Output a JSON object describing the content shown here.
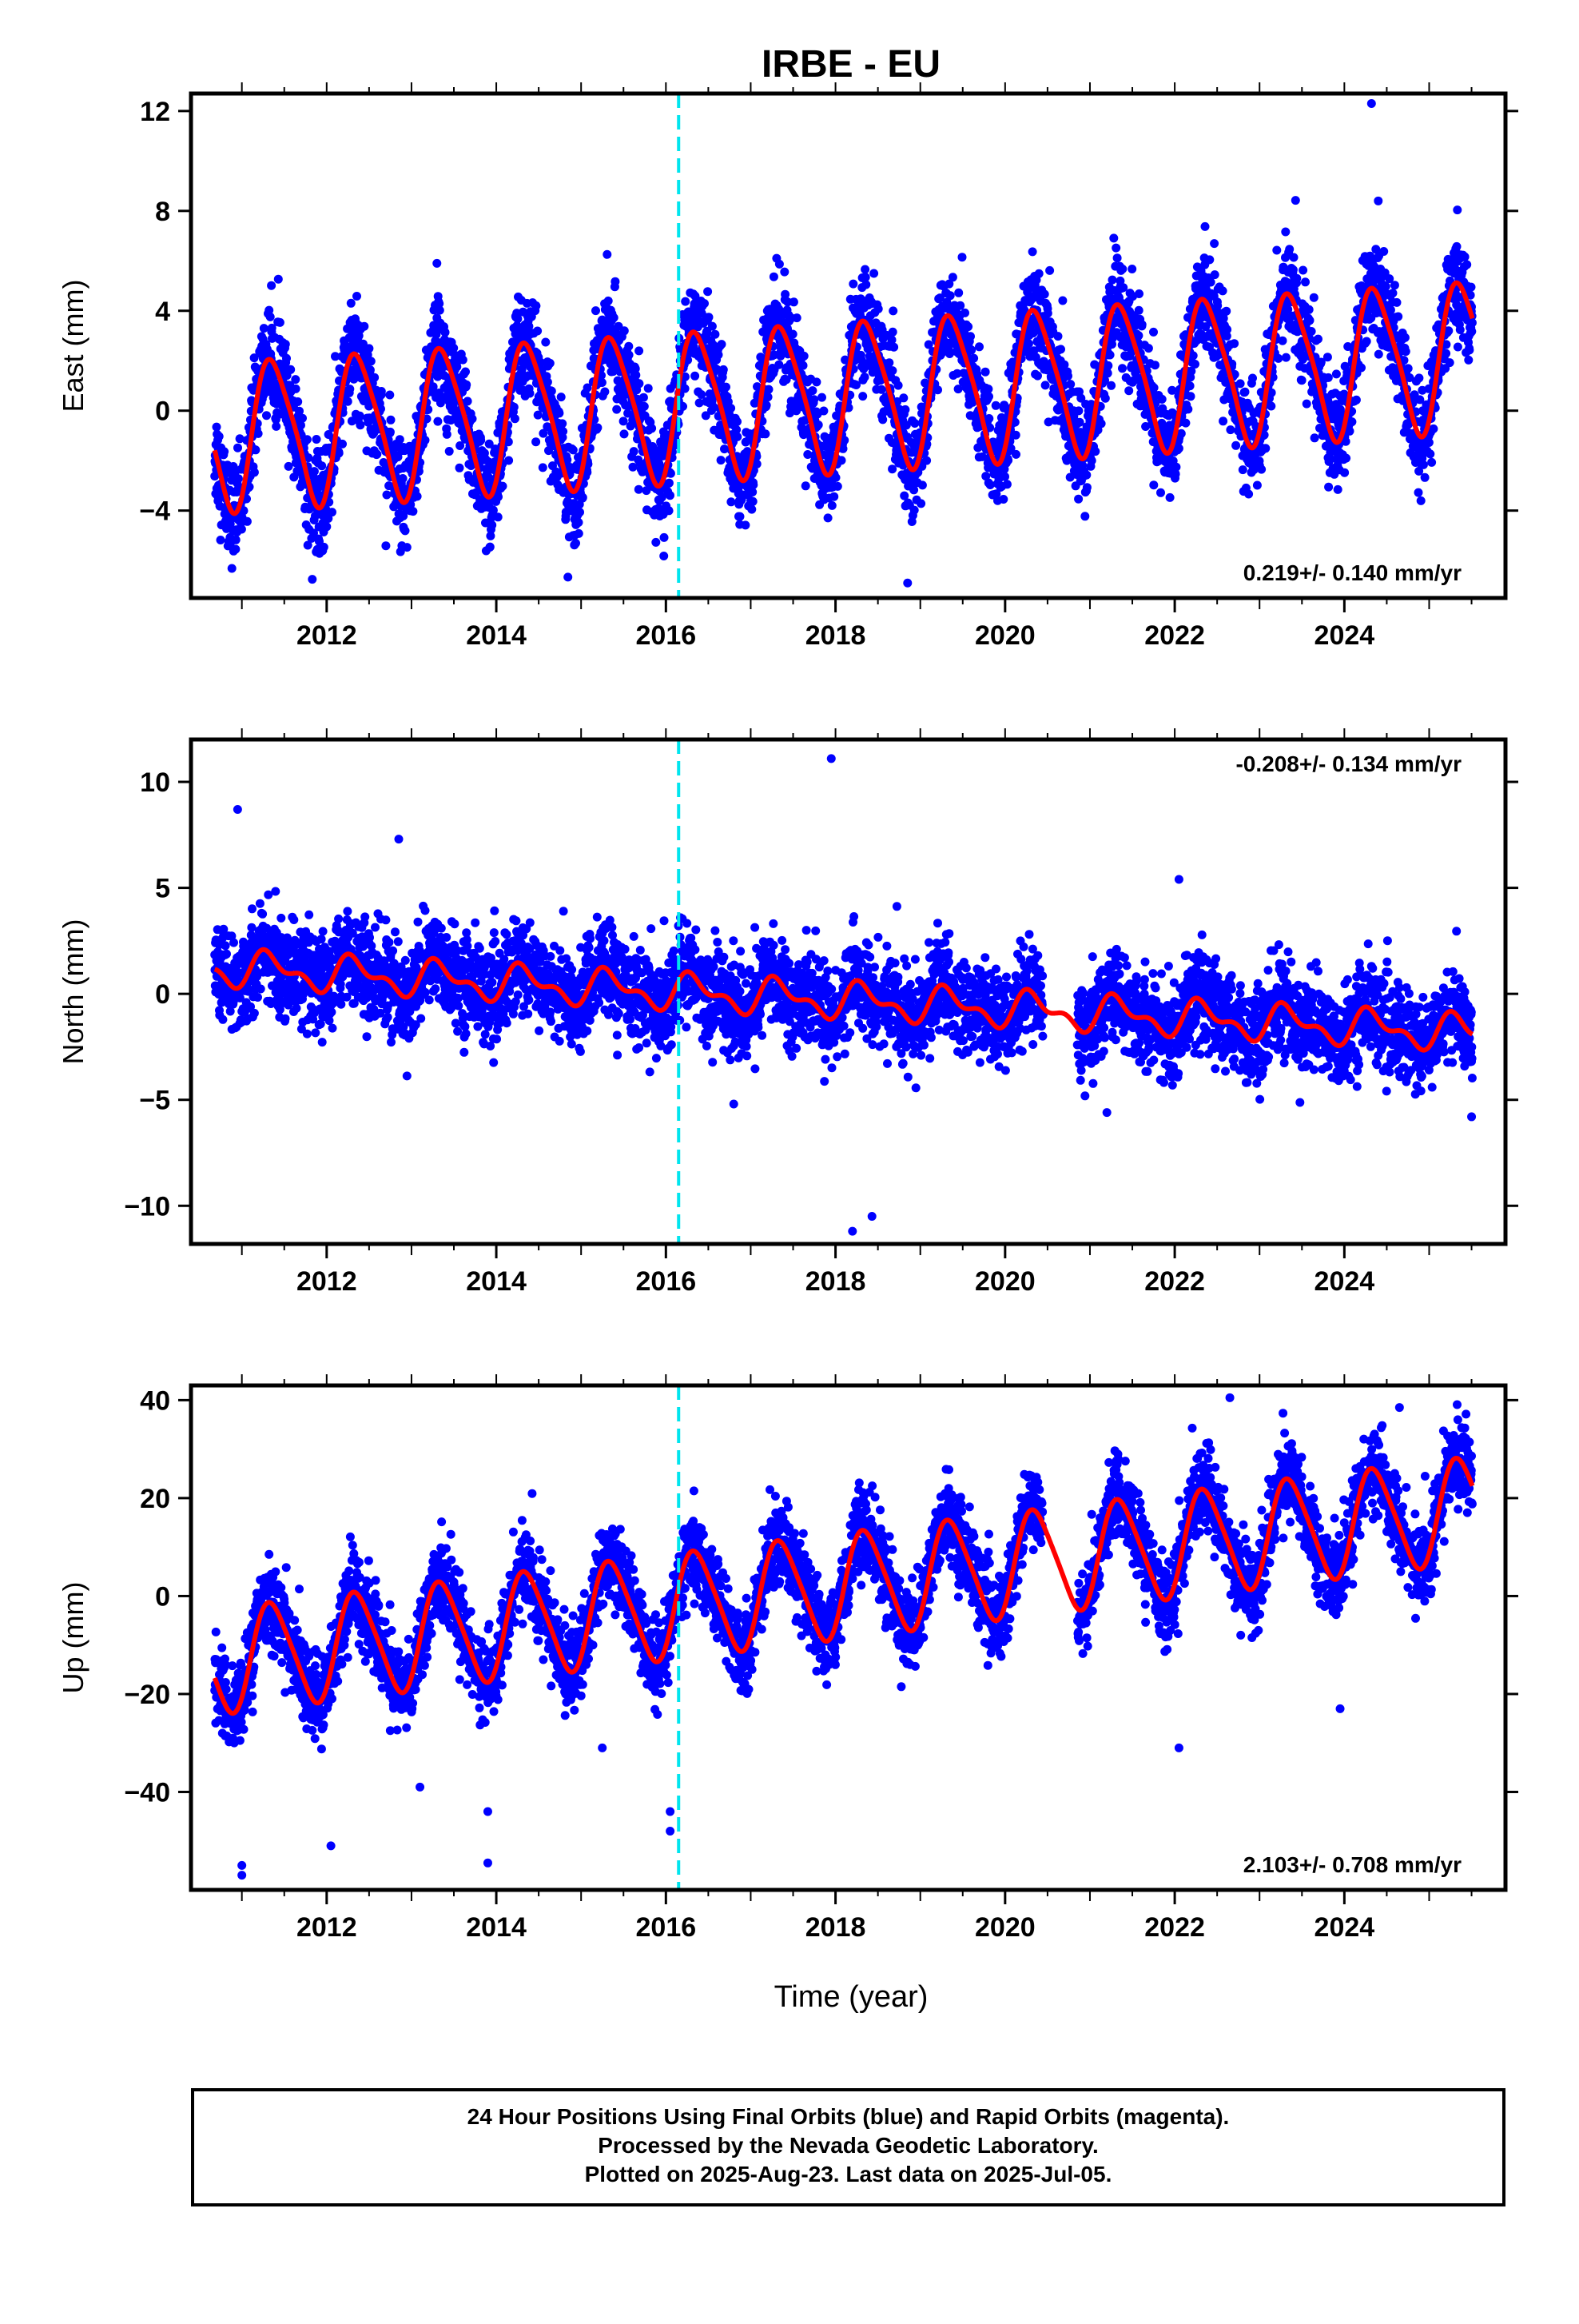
{
  "title": "IRBE - EU",
  "x_axis_label": "Time (year)",
  "x_ticks": [
    "2012",
    "2014",
    "2016",
    "2018",
    "2020",
    "2022",
    "2024"
  ],
  "caption_lines": [
    "24 Hour Positions Using Final Orbits (blue) and Rapid Orbits (magenta).",
    "Processed by the Nevada Geodetic Laboratory.",
    "Plotted on 2025-Aug-23. Last data on 2025-Jul-05."
  ],
  "colors": {
    "final_orbits": "#0000ff",
    "model": "#ff0000",
    "event_line": "#00e5ee",
    "frame": "#000000"
  },
  "chart_data": [
    {
      "type": "scatter",
      "ylabel": "East (mm)",
      "rate_label": "0.219+/- 0.140 mm/yr",
      "xlim": [
        2010.4,
        2025.9
      ],
      "ylim": [
        -7.5,
        12.7
      ],
      "y_ticks": [
        12,
        8,
        4,
        0,
        -4
      ],
      "event_line_x": 2016.15,
      "data_start": 2010.68,
      "data_end": 2025.51,
      "gaps": [],
      "model": {
        "offset_2018": 0.6,
        "annual_amplitude": 2.9,
        "annual_phase": -0.15,
        "semiannual_amplitude": 0.5,
        "noise": 1.0,
        "trend_mm_per_yr": 0.219
      },
      "outliers": [
        [
          2024.32,
          12.3
        ],
        [
          2013.3,
          5.9
        ],
        [
          2018.85,
          -6.9
        ],
        [
          2024.4,
          8.4
        ]
      ]
    },
    {
      "type": "scatter",
      "ylabel": "North (mm)",
      "rate_label": "-0.208+/- 0.134 mm/yr",
      "xlim": [
        2010.4,
        2025.9
      ],
      "ylim": [
        -11.8,
        12.0
      ],
      "y_ticks": [
        10,
        5,
        0,
        -5,
        -10
      ],
      "event_line_x": 2016.15,
      "data_start": 2010.68,
      "data_end": 2025.51,
      "gaps": [
        [
          2020.45,
          2020.85
        ]
      ],
      "model": {
        "offset_2018": -0.3,
        "annual_amplitude": 0.7,
        "annual_phase": 0.1,
        "semiannual_amplitude": 0.4,
        "noise": 1.1,
        "trend_mm_per_yr": -0.208
      },
      "outliers": [
        [
          2017.95,
          11.1
        ],
        [
          2018.2,
          -11.2
        ],
        [
          2018.43,
          -10.5
        ],
        [
          2010.95,
          8.7
        ],
        [
          2012.85,
          7.3
        ],
        [
          2016.8,
          -5.2
        ],
        [
          2022.05,
          5.4
        ],
        [
          2021.2,
          -5.6
        ],
        [
          2025.5,
          -5.8
        ]
      ]
    },
    {
      "type": "scatter",
      "ylabel": "Up (mm)",
      "rate_label": "2.103+/- 0.708 mm/yr",
      "xlim": [
        2010.4,
        2025.9
      ],
      "ylim": [
        -60,
        43
      ],
      "y_ticks": [
        40,
        20,
        0,
        -20,
        -40
      ],
      "event_line_x": 2016.15,
      "data_start": 2010.68,
      "data_end": 2025.51,
      "gaps": [
        [
          2020.45,
          2020.85
        ]
      ],
      "model": {
        "offset_2018": 2.0,
        "annual_amplitude": 10.5,
        "annual_phase": -0.05,
        "semiannual_amplitude": 1.5,
        "noise": 4.2,
        "trend_mm_per_yr": 2.103
      },
      "outliers": [
        [
          2011.0,
          -57
        ],
        [
          2011.0,
          -55
        ],
        [
          2013.9,
          -54.5
        ],
        [
          2013.9,
          -44
        ],
        [
          2016.05,
          -48
        ],
        [
          2016.05,
          -44
        ],
        [
          2012.05,
          -51
        ],
        [
          2022.65,
          40.5
        ],
        [
          2024.65,
          38.5
        ],
        [
          2023.95,
          -23
        ],
        [
          2022.05,
          -31
        ],
        [
          2015.25,
          -31
        ],
        [
          2013.1,
          -39
        ]
      ]
    }
  ]
}
